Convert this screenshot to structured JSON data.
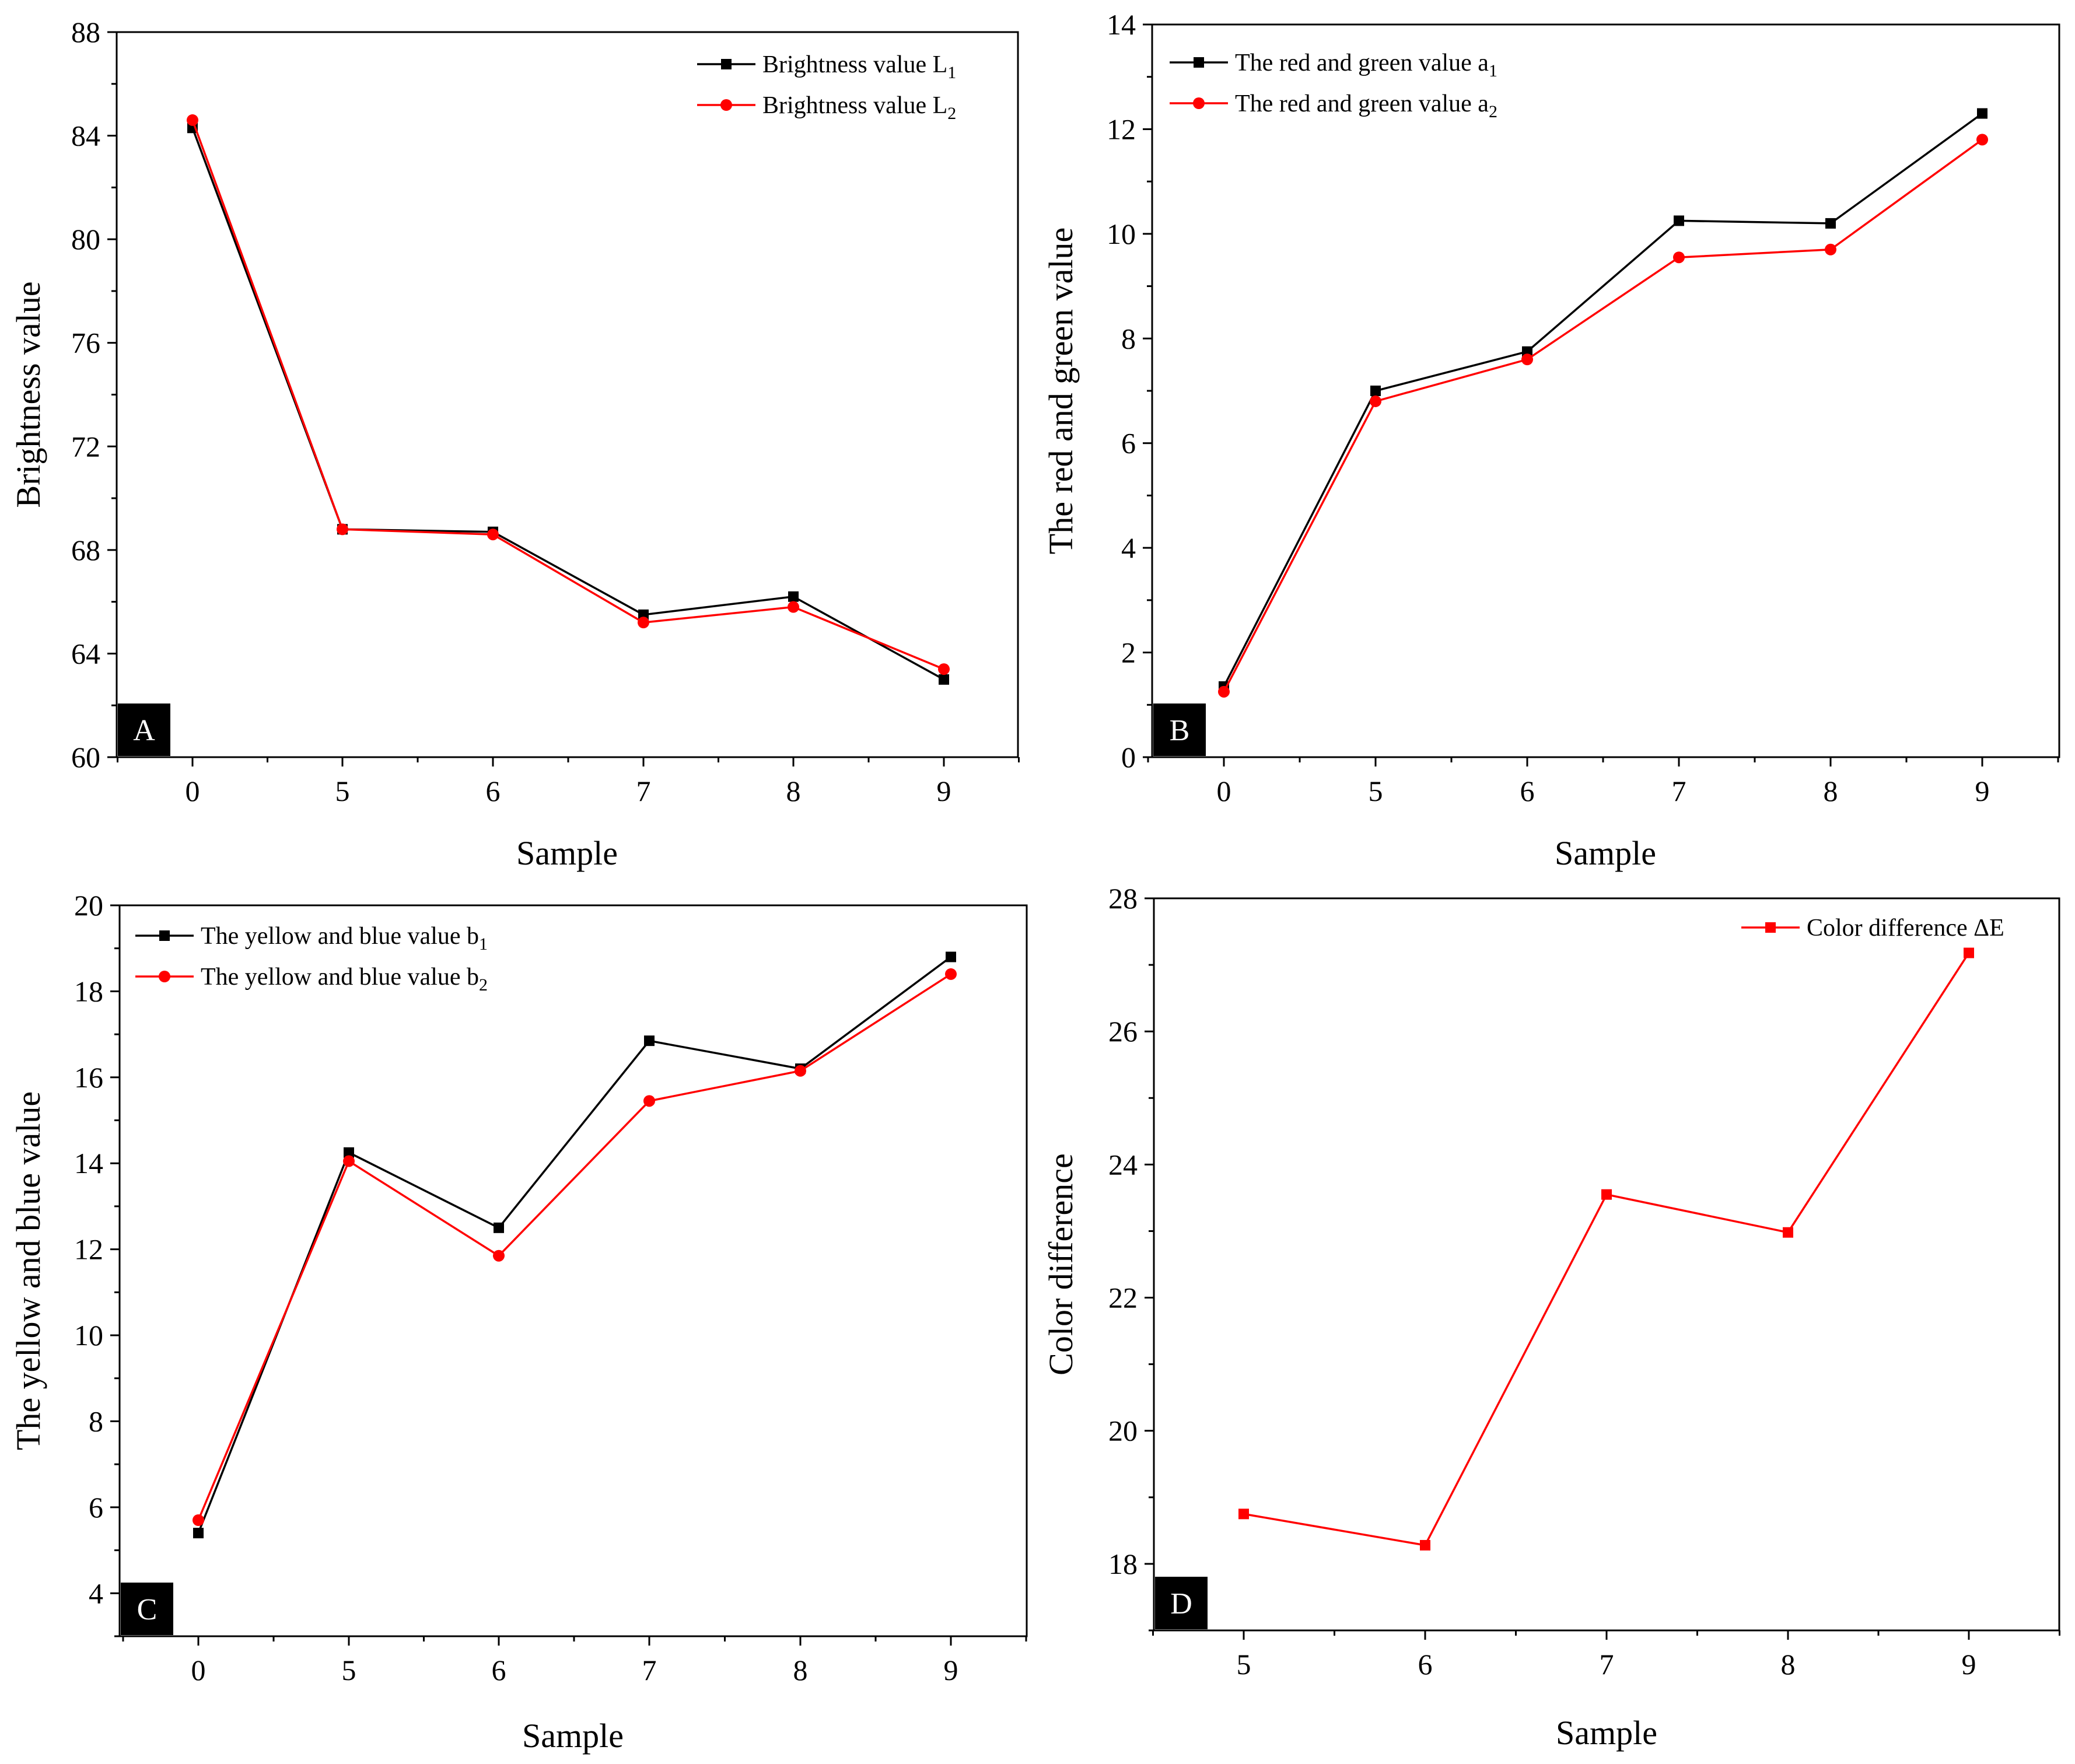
{
  "chart_data": [
    {
      "panel": "A",
      "type": "line",
      "xlabel": "Sample",
      "ylabel": "Brightness value",
      "categories": [
        "0",
        "5",
        "6",
        "7",
        "8",
        "9"
      ],
      "ylim": [
        60,
        88
      ],
      "yticks": [
        60,
        64,
        68,
        72,
        76,
        80,
        84,
        88
      ],
      "legend_position": "top-right",
      "series": [
        {
          "name": "Brightness value L",
          "sub": "1",
          "color": "#000000",
          "marker": "square",
          "values": [
            84.3,
            68.8,
            68.7,
            65.5,
            66.2,
            63.0
          ]
        },
        {
          "name": "Brightness value L",
          "sub": "2",
          "color": "#ff0000",
          "marker": "circle",
          "values": [
            84.6,
            68.8,
            68.6,
            65.2,
            65.8,
            63.4
          ]
        }
      ]
    },
    {
      "panel": "B",
      "type": "line",
      "xlabel": "Sample",
      "ylabel": "The red and green value",
      "categories": [
        "0",
        "5",
        "6",
        "7",
        "8",
        "9"
      ],
      "ylim": [
        0,
        14
      ],
      "yticks": [
        0,
        2,
        4,
        6,
        8,
        10,
        12,
        14
      ],
      "legend_position": "top-left",
      "series": [
        {
          "name": "The red and green value a",
          "sub": "1",
          "color": "#000000",
          "marker": "square",
          "values": [
            1.35,
            7.0,
            7.75,
            10.25,
            10.2,
            12.3
          ]
        },
        {
          "name": "The red and green value a",
          "sub": "2",
          "color": "#ff0000",
          "marker": "circle",
          "values": [
            1.25,
            6.8,
            7.6,
            9.55,
            9.7,
            11.8
          ]
        }
      ]
    },
    {
      "panel": "C",
      "type": "line",
      "xlabel": "Sample",
      "ylabel": "The yellow and blue value",
      "categories": [
        "0",
        "5",
        "6",
        "7",
        "8",
        "9"
      ],
      "ylim": [
        3,
        20
      ],
      "yticks": [
        4,
        6,
        8,
        10,
        12,
        14,
        16,
        18,
        20
      ],
      "legend_position": "top-left",
      "series": [
        {
          "name": "The yellow and blue value b",
          "sub": "1",
          "color": "#000000",
          "marker": "square",
          "values": [
            5.4,
            14.25,
            12.5,
            16.85,
            16.2,
            18.8
          ]
        },
        {
          "name": "The yellow and blue value b",
          "sub": "2",
          "color": "#ff0000",
          "marker": "circle",
          "values": [
            5.7,
            14.05,
            11.85,
            15.45,
            16.15,
            18.4
          ]
        }
      ]
    },
    {
      "panel": "D",
      "type": "line",
      "xlabel": "Sample",
      "ylabel": "Color difference",
      "categories": [
        "5",
        "6",
        "7",
        "8",
        "9"
      ],
      "ylim": [
        17,
        28
      ],
      "yticks": [
        18,
        20,
        22,
        24,
        26,
        28
      ],
      "legend_position": "top-right",
      "series": [
        {
          "name": "Color difference ΔE",
          "sub": "",
          "color": "#ff0000",
          "marker": "square",
          "values": [
            18.75,
            18.28,
            23.55,
            22.98,
            27.18
          ]
        }
      ]
    }
  ]
}
